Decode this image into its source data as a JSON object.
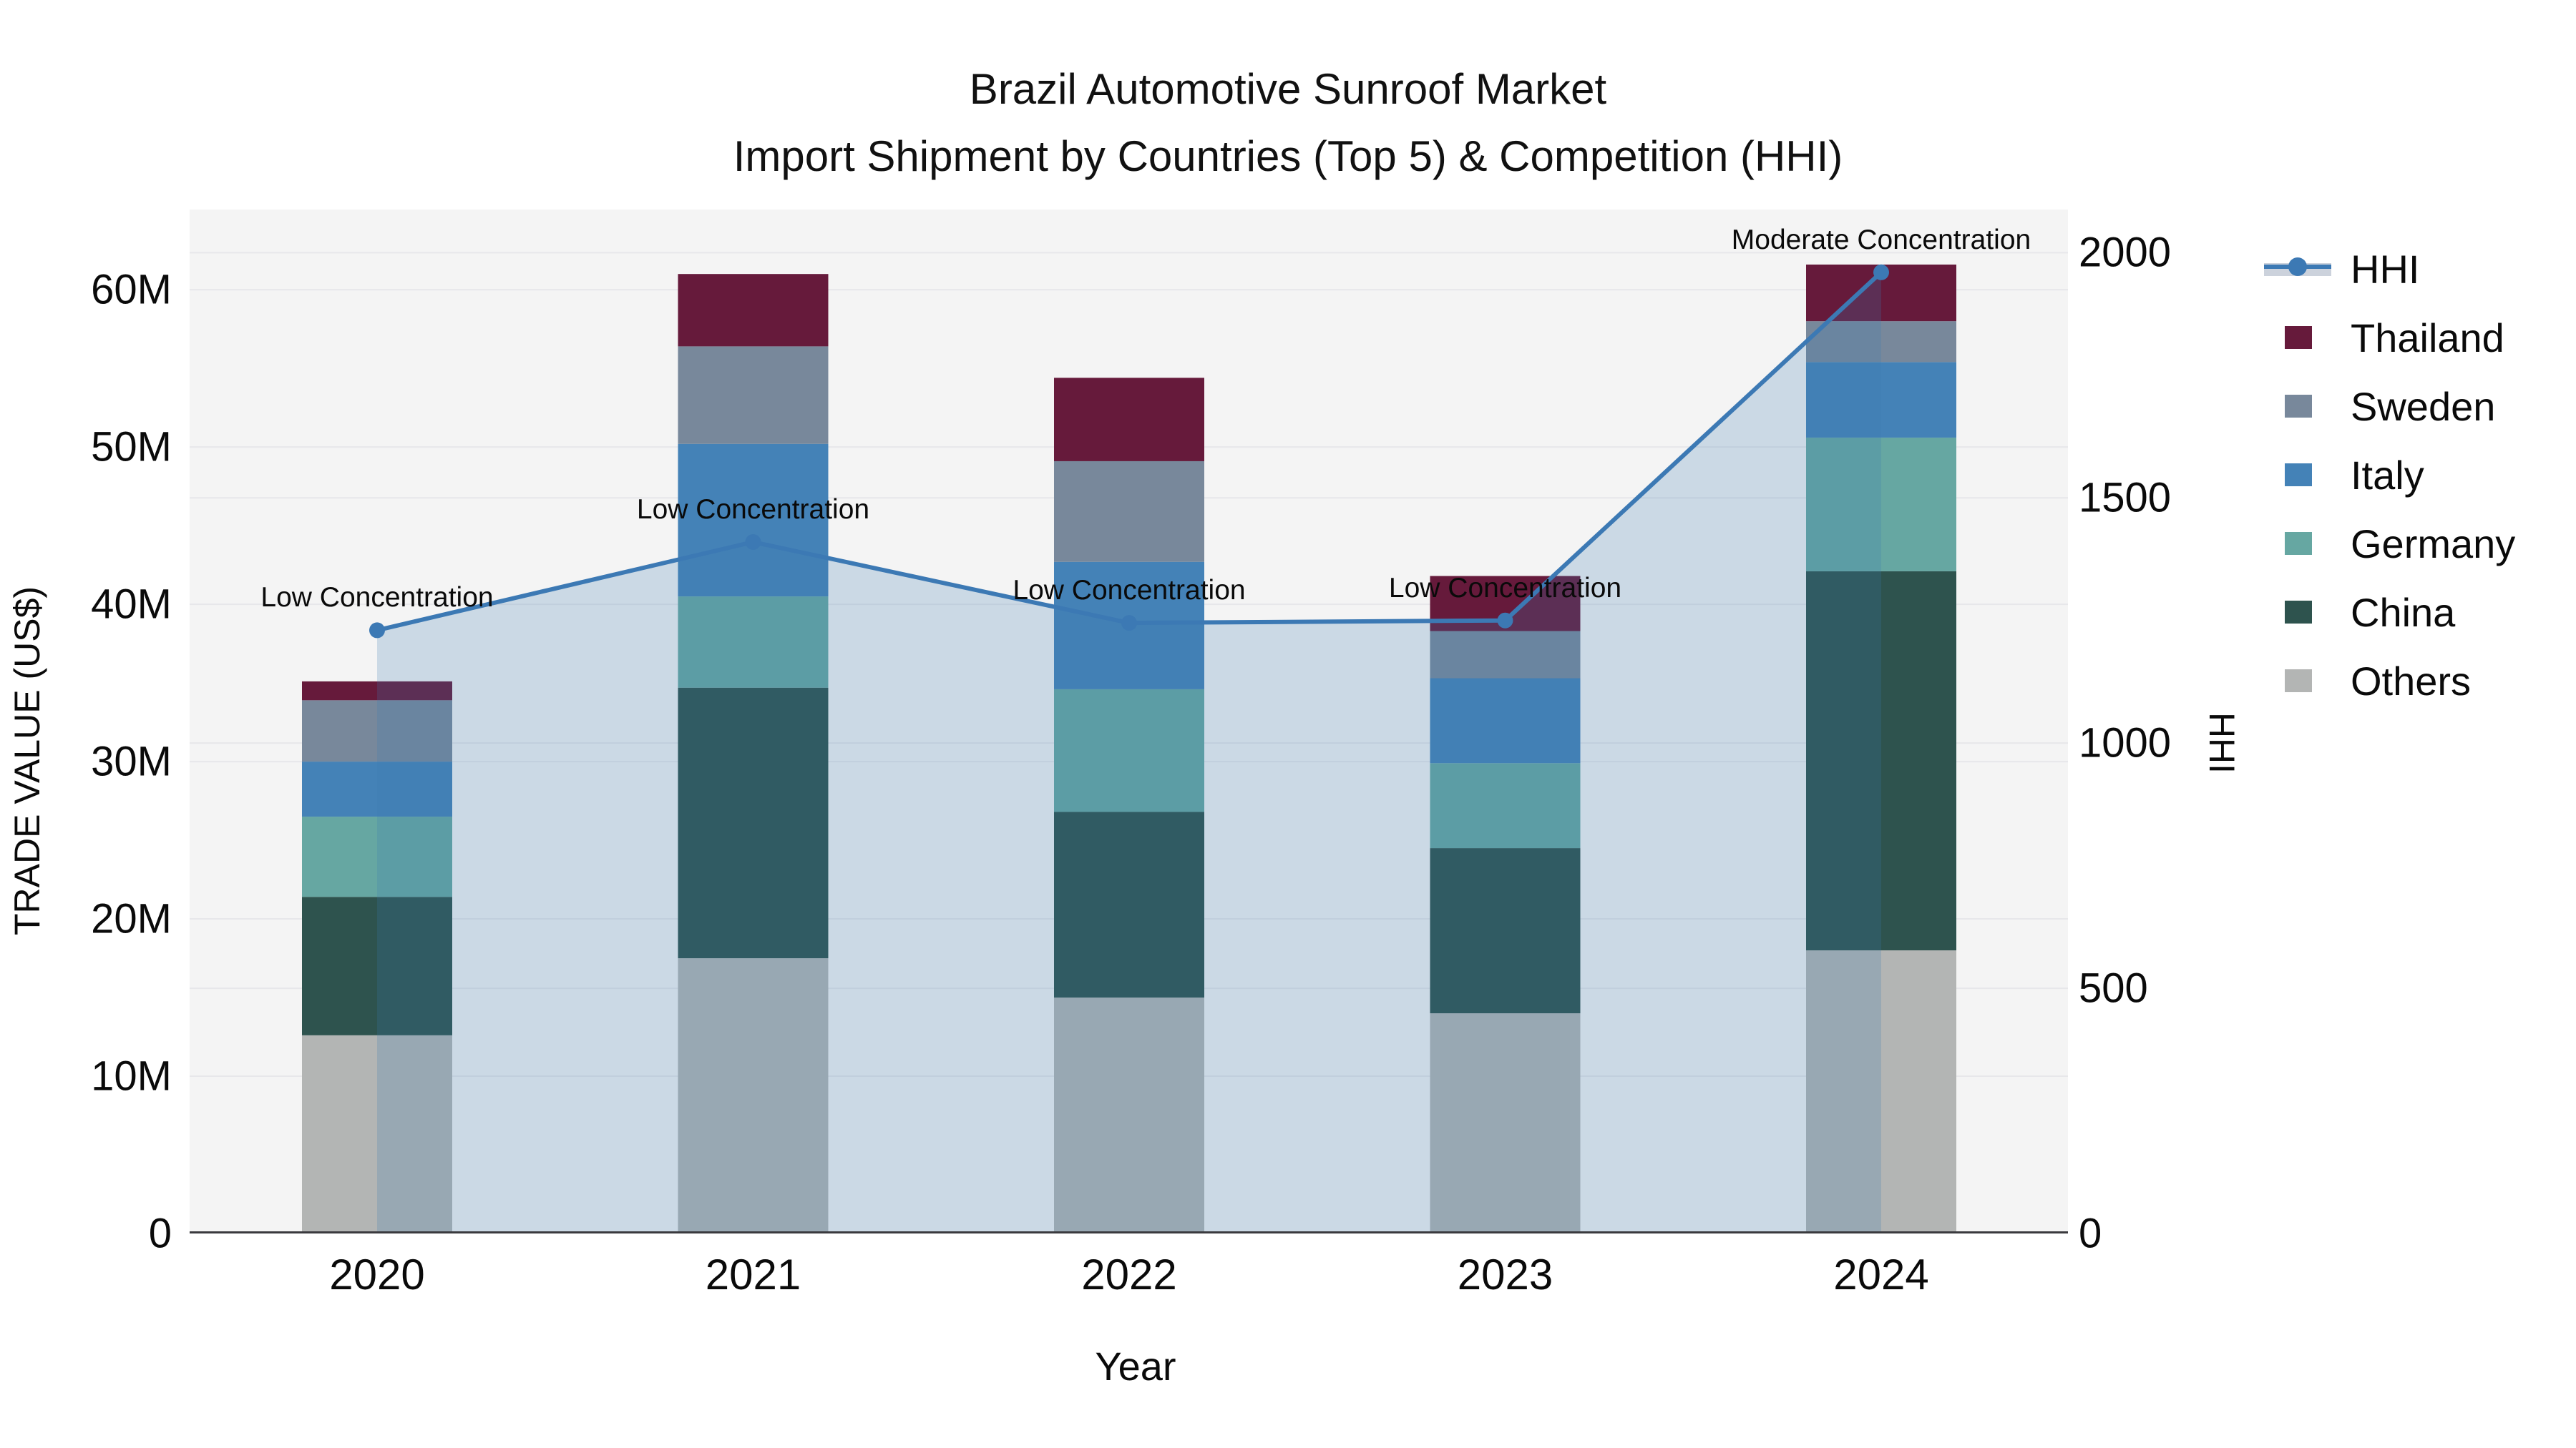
{
  "title": {
    "line1": "Brazil Automotive Sunroof Market",
    "line2": "Import Shipment by Countries (Top 5) & Competition (HHI)"
  },
  "axes": {
    "y_left": {
      "title": "TRADE VALUE (US$)",
      "ticks": [
        {
          "label": "0",
          "value": 0
        },
        {
          "label": "10M",
          "value": 10
        },
        {
          "label": "20M",
          "value": 20
        },
        {
          "label": "30M",
          "value": 30
        },
        {
          "label": "40M",
          "value": 40
        },
        {
          "label": "50M",
          "value": 50
        },
        {
          "label": "60M",
          "value": 60
        }
      ]
    },
    "y_right": {
      "title": "HHI",
      "ticks": [
        {
          "label": "0",
          "value": 0
        },
        {
          "label": "500",
          "value": 500
        },
        {
          "label": "1000",
          "value": 1000
        },
        {
          "label": "1500",
          "value": 1500
        },
        {
          "label": "2000",
          "value": 2000
        }
      ]
    },
    "x": {
      "title": "Year",
      "ticks": [
        "2020",
        "2021",
        "2022",
        "2023",
        "2024"
      ]
    }
  },
  "legend": {
    "items": [
      {
        "label": "HHI",
        "swatch": "line",
        "color": "#3c79b4"
      },
      {
        "label": "Thailand",
        "swatch": "square",
        "color": "#661a3b"
      },
      {
        "label": "Sweden",
        "swatch": "square",
        "color": "#78889b"
      },
      {
        "label": "Italy",
        "swatch": "square",
        "color": "#4482b7"
      },
      {
        "label": "Germany",
        "swatch": "square",
        "color": "#66a7a2"
      },
      {
        "label": "China",
        "swatch": "square",
        "color": "#2e534e"
      },
      {
        "label": "Others",
        "swatch": "square",
        "color": "#b3b5b4"
      }
    ]
  },
  "chart_data": {
    "type": "bar",
    "subtype": "stacked-bar-with-line",
    "title": "Brazil Automotive Sunroof Market — Import Shipment by Countries (Top 5) & Competition (HHI)",
    "xlabel": "Year",
    "ylabel_left": "TRADE VALUE (US$)",
    "ylabel_right": "HHI",
    "categories": [
      "2020",
      "2021",
      "2022",
      "2023",
      "2024"
    ],
    "unit": "millions USD",
    "series": [
      {
        "name": "Others",
        "color": "#b3b5b4",
        "values": [
          12.6,
          17.5,
          15.0,
          14.0,
          18.0
        ]
      },
      {
        "name": "China",
        "color": "#2e534e",
        "values": [
          8.8,
          17.2,
          11.8,
          10.5,
          24.1
        ]
      },
      {
        "name": "Germany",
        "color": "#66a7a2",
        "values": [
          5.1,
          5.8,
          7.8,
          5.4,
          8.5
        ]
      },
      {
        "name": "Italy",
        "color": "#4482b7",
        "values": [
          3.5,
          9.7,
          8.1,
          5.4,
          4.8
        ]
      },
      {
        "name": "Sweden",
        "color": "#78889b",
        "values": [
          3.9,
          6.2,
          6.4,
          3.0,
          2.6
        ]
      },
      {
        "name": "Thailand",
        "color": "#661a3b",
        "values": [
          1.2,
          4.6,
          5.3,
          3.5,
          3.6
        ]
      }
    ],
    "bar_totals": [
      35.1,
      61.0,
      54.4,
      41.8,
      61.6
    ],
    "line_series": {
      "name": "HHI",
      "axis": "right",
      "color": "#3c79b4",
      "area_fill": "rgba(61,121,179,0.22)",
      "values": [
        1230,
        1410,
        1245,
        1250,
        1960
      ]
    },
    "point_annotations": [
      "Low Concentration",
      "Low Concentration",
      "Low Concentration",
      "Low Concentration",
      "Moderate Concentration"
    ],
    "ylim_left": [
      0,
      65.1
    ],
    "ylim_right": [
      0,
      2088
    ],
    "grid": true,
    "legend_position": "right",
    "plot_background": "#f4f4f4"
  }
}
